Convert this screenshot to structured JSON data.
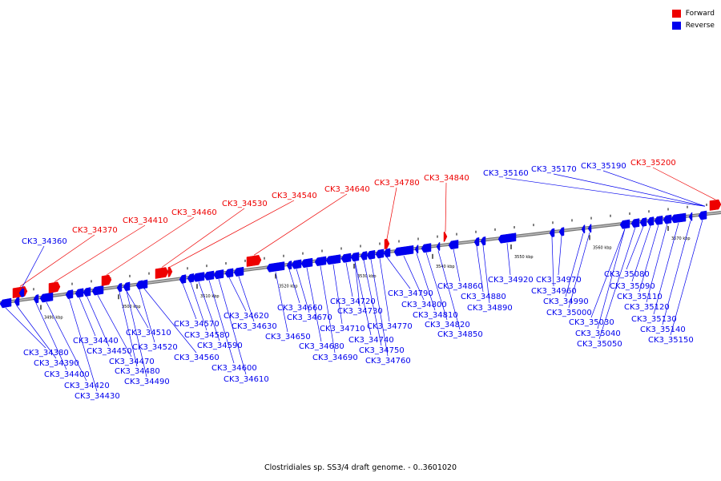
{
  "legend": {
    "forward": {
      "label": "Forward",
      "color": "#ee0000"
    },
    "reverse": {
      "label": "Reverse",
      "color": "#0000ee"
    }
  },
  "caption": "Clostridiales sp. SS3/4 draft genome. - 0..3601020",
  "scale": {
    "ticks": [
      "3490 kbp",
      "3500 kbp",
      "3510 kbp",
      "3520 kbp",
      "3530 kbp",
      "3540 kbp",
      "3550 kbp",
      "3560 kbp",
      "3570 kbp"
    ]
  },
  "genes": {
    "forward": [
      "CK3_34370",
      "CK3_34410",
      "CK3_34460",
      "CK3_34530",
      "CK3_34540",
      "CK3_34640",
      "CK3_34780",
      "CK3_34840",
      "CK3_35200"
    ],
    "reverse_top": [
      "CK3_34360",
      "CK3_35160",
      "CK3_35170",
      "CK3_35190"
    ],
    "reverse_bottom": [
      "CK3_34380",
      "CK3_34390",
      "CK3_34400",
      "CK3_34420",
      "CK3_34430",
      "CK3_34440",
      "CK3_34450",
      "CK3_34470",
      "CK3_34480",
      "CK3_34490",
      "CK3_34510",
      "CK3_34520",
      "CK3_34560",
      "CK3_34570",
      "CK3_34580",
      "CK3_34590",
      "CK3_34600",
      "CK3_34610",
      "CK3_34620",
      "CK3_34630",
      "CK3_34650",
      "CK3_34660",
      "CK3_34670",
      "CK3_34680",
      "CK3_34690",
      "CK3_34710",
      "CK3_34720",
      "CK3_34730",
      "CK3_34740",
      "CK3_34750",
      "CK3_34760",
      "CK3_34770",
      "CK3_34790",
      "CK3_34800",
      "CK3_34810",
      "CK3_34820",
      "CK3_34850",
      "CK3_34860",
      "CK3_34880",
      "CK3_34890",
      "CK3_34920",
      "CK3_34960",
      "CK3_34970",
      "CK3_34990",
      "CK3_35000",
      "CK3_35030",
      "CK3_35040",
      "CK3_35050",
      "CK3_35080",
      "CK3_35090",
      "CK3_35110",
      "CK3_35120",
      "CK3_35130",
      "CK3_35140",
      "CK3_35150"
    ]
  }
}
